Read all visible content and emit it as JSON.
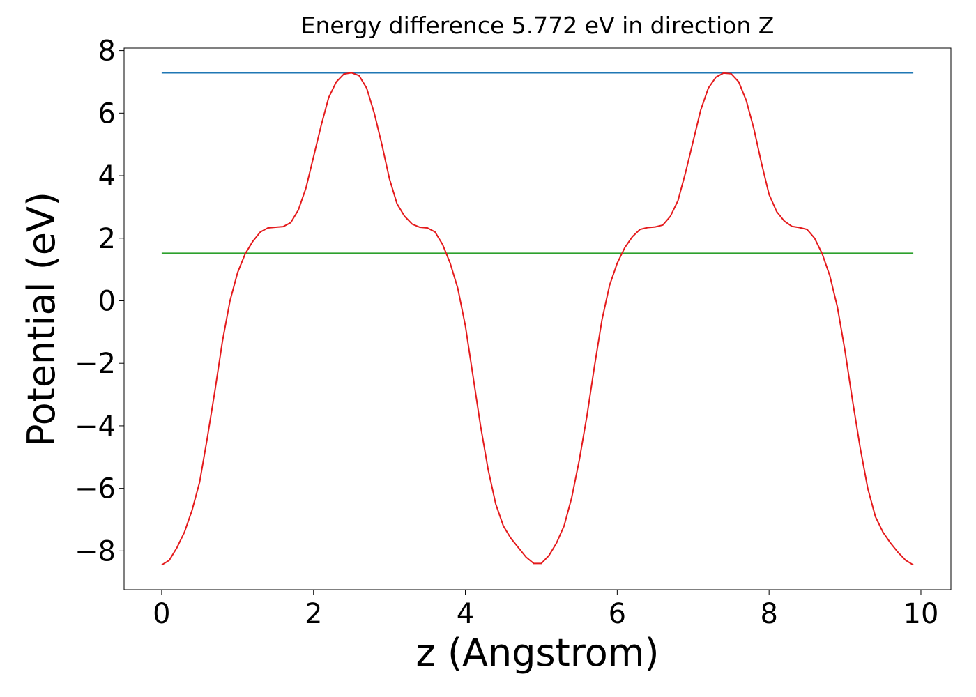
{
  "chart_data": {
    "type": "line",
    "title": "Energy difference 5.772 eV in direction Z",
    "x_label": "z (Angstrom)",
    "y_label": "Potential (eV)",
    "xlim": [
      -0.495,
      10.395
    ],
    "ylim": [
      -9.24,
      8.08
    ],
    "xticks": [
      0,
      2,
      4,
      6,
      8,
      10
    ],
    "yticks": [
      {
        "value": -8,
        "label": "−8"
      },
      {
        "value": -6,
        "label": "−6"
      },
      {
        "value": -4,
        "label": "−4"
      },
      {
        "value": -2,
        "label": "−2"
      },
      0,
      2,
      4,
      6,
      8
    ],
    "grid": false,
    "series": [
      {
        "color": "#1f77b4",
        "x": [
          0,
          9.9
        ],
        "values": [
          7.29,
          7.29
        ]
      },
      {
        "color": "#2ca02c",
        "x": [
          0,
          9.9
        ],
        "values": [
          1.518,
          1.518
        ]
      },
      {
        "color": "#e41a1c",
        "x": [
          0,
          0.1,
          0.2,
          0.3,
          0.4,
          0.5,
          0.6,
          0.7,
          0.8,
          0.9,
          1,
          1.1,
          1.2,
          1.3,
          1.4,
          1.5,
          1.6,
          1.7,
          1.8,
          1.9,
          2,
          2.1,
          2.2,
          2.3,
          2.4,
          2.5,
          2.6,
          2.7,
          2.8,
          2.9,
          3,
          3.1,
          3.2,
          3.3,
          3.4,
          3.5,
          3.6,
          3.7,
          3.8,
          3.9,
          4,
          4.1,
          4.2,
          4.3,
          4.4,
          4.5,
          4.6,
          4.7,
          4.8,
          4.9,
          5,
          5.1,
          5.2,
          5.3,
          5.4,
          5.5,
          5.6,
          5.7,
          5.8,
          5.9,
          6,
          6.1,
          6.2,
          6.3,
          6.4,
          6.5,
          6.6,
          6.7,
          6.8,
          6.9,
          7,
          7.1,
          7.2,
          7.3,
          7.4,
          7.5,
          7.6,
          7.7,
          7.8,
          7.9,
          8,
          8.1,
          8.2,
          8.3,
          8.4,
          8.5,
          8.6,
          8.7,
          8.8,
          8.9,
          9,
          9.1,
          9.2,
          9.3,
          9.4,
          9.5,
          9.6,
          9.7,
          9.8,
          9.9
        ],
        "values": [
          -8.45,
          -8.3,
          -7.9,
          -7.4,
          -6.7,
          -5.8,
          -4.4,
          -2.9,
          -1.3,
          0.0,
          0.9,
          1.5,
          1.9,
          2.2,
          2.33,
          2.35,
          2.37,
          2.5,
          2.9,
          3.6,
          4.6,
          5.6,
          6.5,
          7.0,
          7.25,
          7.29,
          7.2,
          6.8,
          6.0,
          5.0,
          3.9,
          3.1,
          2.7,
          2.45,
          2.35,
          2.33,
          2.2,
          1.8,
          1.2,
          0.4,
          -0.8,
          -2.4,
          -4.0,
          -5.4,
          -6.5,
          -7.2,
          -7.6,
          -7.9,
          -8.2,
          -8.4,
          -8.4,
          -8.15,
          -7.75,
          -7.2,
          -6.3,
          -5.1,
          -3.7,
          -2.1,
          -0.6,
          0.5,
          1.2,
          1.7,
          2.05,
          2.28,
          2.34,
          2.36,
          2.42,
          2.7,
          3.2,
          4.1,
          5.1,
          6.1,
          6.8,
          7.15,
          7.28,
          7.26,
          7.0,
          6.4,
          5.5,
          4.4,
          3.4,
          2.85,
          2.55,
          2.38,
          2.34,
          2.28,
          2.0,
          1.5,
          0.8,
          -0.2,
          -1.6,
          -3.2,
          -4.7,
          -6.0,
          -6.9,
          -7.4,
          -7.75,
          -8.05,
          -8.3,
          -8.45
        ]
      }
    ]
  }
}
